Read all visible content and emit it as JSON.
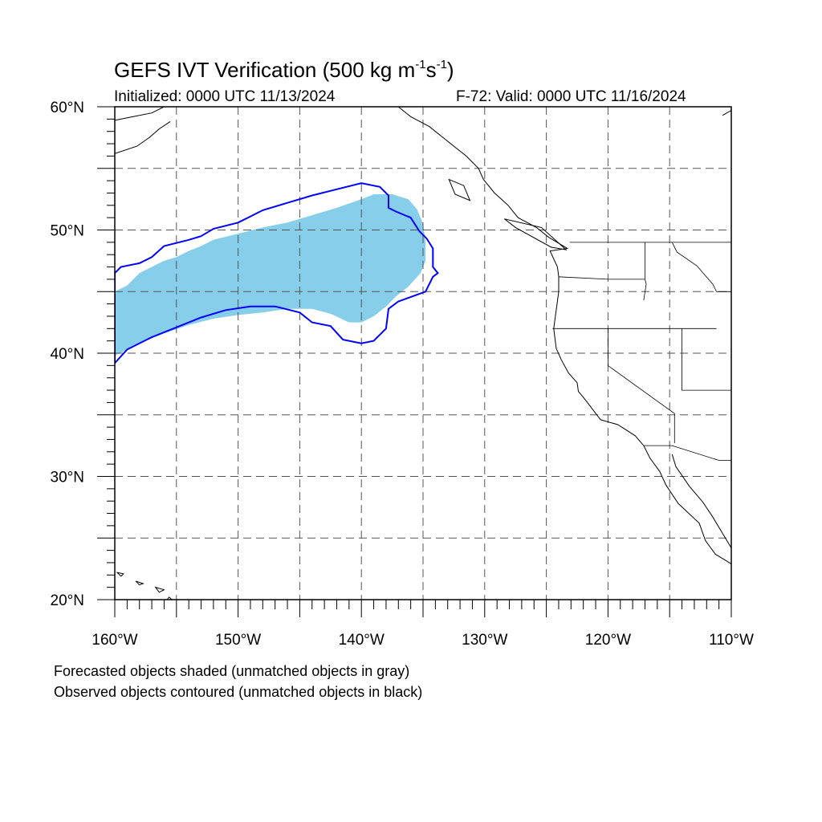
{
  "title": {
    "main": "GEFS IVT Verification (500 kg m",
    "exp1": "-1",
    "mid": "s",
    "exp2": "-1",
    "close": ")"
  },
  "initialized": "Initialized: 0000 UTC 11/13/2024",
  "valid": "F-72: Valid: 0000 UTC 11/16/2024",
  "notes": [
    "Forecasted objects shaded (unmatched objects in gray)",
    "Observed objects contoured (unmatched objects in black)"
  ],
  "map": {
    "lon_range": [
      -160,
      -110
    ],
    "lat_range": [
      20,
      60
    ],
    "grid": "dashed",
    "lon_labels": [
      "160°W",
      "150°W",
      "140°W",
      "130°W",
      "120°W",
      "110°W"
    ],
    "lat_labels": [
      "20°N",
      "30°N",
      "40°N",
      "50°N",
      "60°N"
    ],
    "colors": {
      "forecast_fill": "#87ceeb",
      "observed_contour": "#0000ff",
      "coastline": "#000000",
      "grid": "#555555"
    },
    "forecast_object": {
      "type": "shaded",
      "outline_lonlat": [
        [
          -160,
          45
        ],
        [
          -159,
          45.5
        ],
        [
          -158,
          46.5
        ],
        [
          -157,
          47
        ],
        [
          -156,
          47.5
        ],
        [
          -155,
          47.8
        ],
        [
          -154,
          48.3
        ],
        [
          -153,
          48.7
        ],
        [
          -152,
          49.2
        ],
        [
          -150,
          49.7
        ],
        [
          -148,
          50.2
        ],
        [
          -146,
          50.6
        ],
        [
          -144,
          51.2
        ],
        [
          -142,
          51.8
        ],
        [
          -140,
          52.5
        ],
        [
          -139,
          52.9
        ],
        [
          -137.5,
          52.9
        ],
        [
          -136.2,
          52.5
        ],
        [
          -135.5,
          51.7
        ],
        [
          -135,
          50.5
        ],
        [
          -134.8,
          49
        ],
        [
          -134.8,
          47.5
        ],
        [
          -135.2,
          46.5
        ],
        [
          -136.2,
          45.4
        ],
        [
          -137.2,
          44.6
        ],
        [
          -138,
          43.8
        ],
        [
          -139,
          43
        ],
        [
          -140,
          42.5
        ],
        [
          -141,
          42.5
        ],
        [
          -142.5,
          43.2
        ],
        [
          -144,
          43.6
        ],
        [
          -146,
          43.6
        ],
        [
          -148,
          43.3
        ],
        [
          -150,
          43.1
        ],
        [
          -152,
          42.8
        ],
        [
          -154,
          42.3
        ],
        [
          -156,
          41.6
        ],
        [
          -158,
          40.8
        ],
        [
          -160,
          39.8
        ]
      ]
    },
    "observed_object": {
      "type": "contour",
      "outline_lonlat": [
        [
          -160,
          46.5
        ],
        [
          -159.5,
          47
        ],
        [
          -158,
          47.3
        ],
        [
          -157,
          47.8
        ],
        [
          -156,
          48.7
        ],
        [
          -154,
          49.2
        ],
        [
          -153,
          49.5
        ],
        [
          -152,
          50.1
        ],
        [
          -150,
          50.6
        ],
        [
          -149,
          51.1
        ],
        [
          -148,
          51.6
        ],
        [
          -146,
          52.2
        ],
        [
          -144,
          52.8
        ],
        [
          -142,
          53.3
        ],
        [
          -140,
          53.8
        ],
        [
          -138.5,
          53.5
        ],
        [
          -137.8,
          52.8
        ],
        [
          -137.8,
          51.8
        ],
        [
          -137.2,
          51.5
        ],
        [
          -136,
          51
        ],
        [
          -135.3,
          49.9
        ],
        [
          -134.7,
          49.3
        ],
        [
          -134.2,
          48.5
        ],
        [
          -134.2,
          47
        ],
        [
          -133.8,
          46.5
        ],
        [
          -134.2,
          46.2
        ],
        [
          -134.8,
          45
        ],
        [
          -137,
          44.2
        ],
        [
          -137.8,
          43.6
        ],
        [
          -138,
          42
        ],
        [
          -139,
          41
        ],
        [
          -140,
          40.8
        ],
        [
          -141.5,
          41.1
        ],
        [
          -142.5,
          42.2
        ],
        [
          -144,
          42.5
        ],
        [
          -145,
          43.3
        ],
        [
          -147,
          43.8
        ],
        [
          -149,
          43.8
        ],
        [
          -151,
          43.5
        ],
        [
          -153,
          42.9
        ],
        [
          -155,
          42.1
        ],
        [
          -157,
          41.3
        ],
        [
          -159,
          40.3
        ],
        [
          -160,
          39.2
        ]
      ]
    },
    "coastline_lonlat": [
      [
        [
          -137,
          60
        ],
        [
          -136,
          59.2
        ],
        [
          -134.5,
          58.4
        ],
        [
          -133,
          57.2
        ],
        [
          -131.5,
          56
        ],
        [
          -130.5,
          55
        ],
        [
          -130.1,
          54.1
        ],
        [
          -129.2,
          53
        ],
        [
          -128.1,
          52
        ],
        [
          -127.3,
          51
        ],
        [
          -125.8,
          50.2
        ],
        [
          -124.8,
          49.4
        ],
        [
          -123.3,
          48.5
        ],
        [
          -124.7,
          48.3
        ],
        [
          -124.1,
          47
        ],
        [
          -124,
          46.2
        ],
        [
          -124,
          45
        ],
        [
          -124.2,
          43.5
        ],
        [
          -124.4,
          42
        ],
        [
          -124.2,
          40.4
        ],
        [
          -123.8,
          39.5
        ],
        [
          -123.2,
          38.4
        ],
        [
          -122.5,
          37.6
        ],
        [
          -122.4,
          36.9
        ],
        [
          -121.9,
          36.3
        ],
        [
          -120.6,
          34.6
        ],
        [
          -119.2,
          34.2
        ],
        [
          -117.8,
          33.3
        ],
        [
          -117.1,
          32.5
        ],
        [
          -116.6,
          31.5
        ],
        [
          -115.8,
          30.4
        ],
        [
          -115.3,
          29.3
        ],
        [
          -114.3,
          27.8
        ],
        [
          -112.6,
          26.2
        ],
        [
          -112.1,
          24.8
        ],
        [
          -111.3,
          23.7
        ],
        [
          -110,
          22.9
        ]
      ],
      [
        [
          -114.8,
          31.8
        ],
        [
          -114.5,
          30.8
        ],
        [
          -113.4,
          29.2
        ],
        [
          -112.3,
          27.9
        ],
        [
          -111.5,
          26.7
        ],
        [
          -110.6,
          25.2
        ],
        [
          -110,
          24.2
        ]
      ],
      [
        [
          -160,
          58.9
        ],
        [
          -158.5,
          59.2
        ],
        [
          -157,
          59.5
        ],
        [
          -156,
          60
        ]
      ],
      [
        [
          -160,
          56.2
        ],
        [
          -158.2,
          56.8
        ],
        [
          -157.2,
          57.5
        ],
        [
          -156.4,
          58.2
        ],
        [
          -155.5,
          58.8
        ]
      ],
      [
        [
          -110.7,
          59.3
        ],
        [
          -110,
          59.7
        ]
      ]
    ],
    "islands_lonlat": [
      [
        [
          -155.6,
          20.2
        ],
        [
          -155.0,
          19.7
        ],
        [
          -155.4,
          19.3
        ],
        [
          -156.0,
          19.7
        ]
      ],
      [
        [
          -156.7,
          21.0
        ],
        [
          -156.0,
          20.8
        ],
        [
          -156.4,
          20.6
        ]
      ],
      [
        [
          -158.3,
          21.5
        ],
        [
          -157.7,
          21.3
        ],
        [
          -158.0,
          21.2
        ]
      ],
      [
        [
          -159.8,
          22.2
        ],
        [
          -159.3,
          22.1
        ],
        [
          -159.5,
          21.9
        ]
      ],
      [
        [
          -132.9,
          54.1
        ],
        [
          -131.7,
          53.6
        ],
        [
          -131.2,
          52.4
        ],
        [
          -132.4,
          52.9
        ]
      ],
      [
        [
          -128.4,
          50.9
        ],
        [
          -125.4,
          50.2
        ],
        [
          -123.4,
          48.4
        ],
        [
          -124.6,
          48.6
        ],
        [
          -127.5,
          50.2
        ]
      ]
    ],
    "borders_lonlat": [
      [
        [
          -123.1,
          49
        ],
        [
          -110,
          49
        ]
      ],
      [
        [
          -124.5,
          42
        ],
        [
          -111.2,
          42
        ]
      ],
      [
        [
          -120,
          42
        ],
        [
          -120,
          39
        ],
        [
          -114.6,
          35.1
        ],
        [
          -114.6,
          32.7
        ]
      ],
      [
        [
          -124,
          46.2
        ],
        [
          -120,
          46
        ],
        [
          -117,
          46
        ],
        [
          -116.9,
          45.6
        ],
        [
          -117.1,
          44.3
        ]
      ],
      [
        [
          -117,
          49
        ],
        [
          -117,
          46
        ]
      ],
      [
        [
          -111.2,
          45
        ],
        [
          -110,
          45
        ]
      ],
      [
        [
          -114,
          42
        ],
        [
          -114,
          37
        ],
        [
          -110,
          37
        ]
      ],
      [
        [
          -117.1,
          32.5
        ],
        [
          -114.8,
          32.5
        ],
        [
          -111,
          31.3
        ],
        [
          -110,
          31.3
        ]
      ],
      [
        [
          -114.8,
          49
        ],
        [
          -114.4,
          48.2
        ],
        [
          -112.8,
          47.1
        ],
        [
          -111.5,
          45.6
        ],
        [
          -111.2,
          45
        ]
      ]
    ]
  }
}
